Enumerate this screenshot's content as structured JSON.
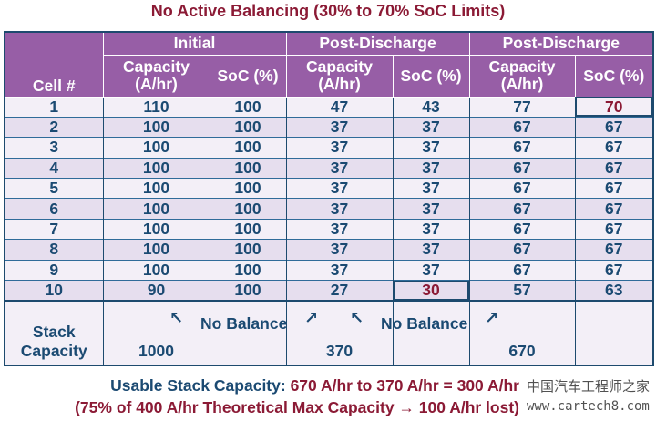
{
  "title": "No Active Balancing (30% to 70% SoC Limits)",
  "header": {
    "cell": "Cell #",
    "groups": [
      "Initial",
      "Post-Discharge",
      "Post-Discharge"
    ],
    "capacity": "Capacity (A/hr)",
    "soc": "SoC (%)"
  },
  "rows": [
    [
      "1",
      "110",
      "100",
      "47",
      "43",
      "77",
      "70"
    ],
    [
      "2",
      "100",
      "100",
      "37",
      "37",
      "67",
      "67"
    ],
    [
      "3",
      "100",
      "100",
      "37",
      "37",
      "67",
      "67"
    ],
    [
      "4",
      "100",
      "100",
      "37",
      "37",
      "67",
      "67"
    ],
    [
      "5",
      "100",
      "100",
      "37",
      "37",
      "67",
      "67"
    ],
    [
      "6",
      "100",
      "100",
      "37",
      "37",
      "67",
      "67"
    ],
    [
      "7",
      "100",
      "100",
      "37",
      "37",
      "67",
      "67"
    ],
    [
      "8",
      "100",
      "100",
      "37",
      "37",
      "67",
      "67"
    ],
    [
      "9",
      "100",
      "100",
      "37",
      "37",
      "67",
      "67"
    ],
    [
      "10",
      "90",
      "100",
      "27",
      "30",
      "57",
      "63"
    ]
  ],
  "stack": {
    "label": "Stack Capacity",
    "initial": "1000",
    "post1": "370",
    "post2": "670",
    "note": "No Balance"
  },
  "footer": {
    "line1_label": "Usable Stack Capacity:",
    "line1_value": "670 A/hr to 370 A/hr = 300 A/hr",
    "line2": "(75% of 400 A/hr Theoretical Max Capacity → 100 A/hr lost)"
  },
  "watermark": {
    "cn": "中国汽车工程师之家",
    "url": "www.cartech8.com"
  },
  "colors": {
    "header": "#975ea6",
    "border": "#1d4a6e",
    "text": "#1b4a72",
    "highlight": "#8b1a35"
  }
}
